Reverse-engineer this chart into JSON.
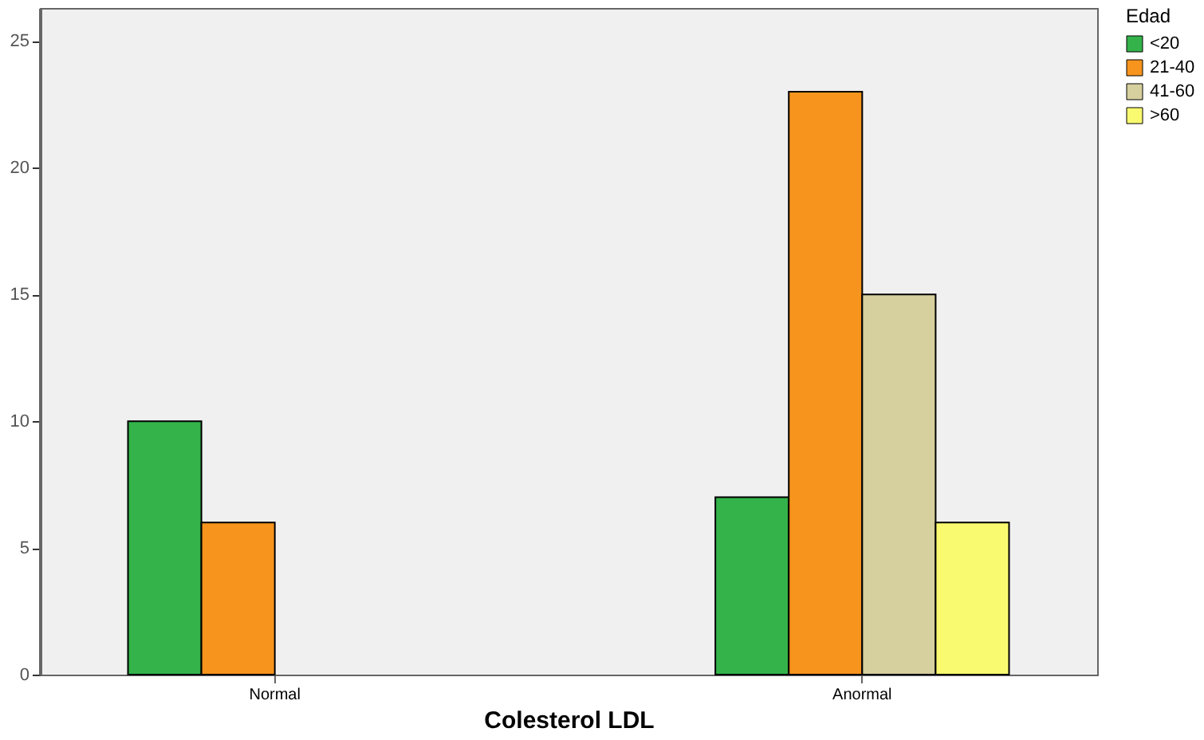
{
  "chart_data": {
    "type": "bar",
    "xlabel": "Colesterol LDL",
    "legend_title": "Edad",
    "categories": [
      "Normal",
      "Anormal"
    ],
    "series": [
      {
        "name": "<20",
        "color": "#33b34a",
        "values": [
          10,
          7
        ]
      },
      {
        "name": "21-40",
        "color": "#f7941d",
        "values": [
          6,
          23
        ]
      },
      {
        "name": "41-60",
        "color": "#d6cf9e",
        "values": [
          null,
          15
        ]
      },
      {
        "name": ">60",
        "color": "#fafa70",
        "values": [
          null,
          6
        ]
      }
    ],
    "ylim": [
      0,
      26.3
    ],
    "yticks": [
      0,
      5,
      10,
      15,
      20,
      25
    ],
    "grid": false,
    "legend": "top right"
  }
}
